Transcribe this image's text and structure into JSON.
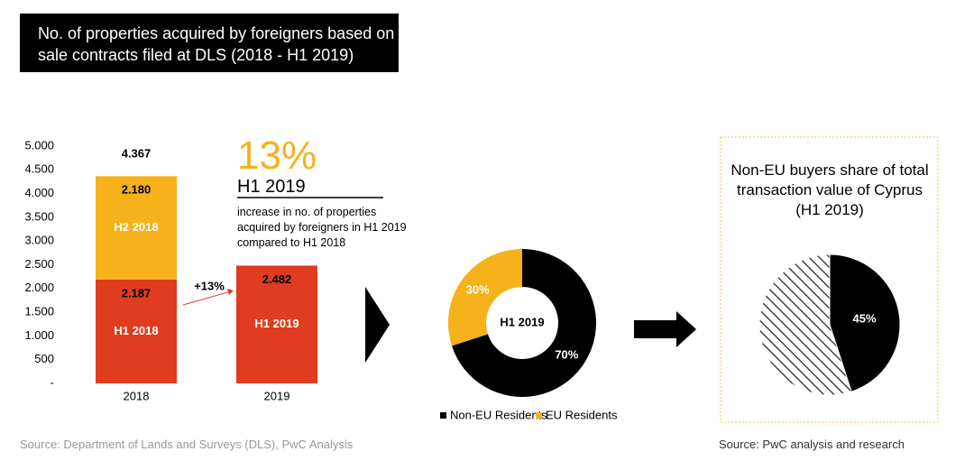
{
  "header": {
    "title": "No. of properties acquired by foreigners based on sale contracts filed at DLS (2018 - H1 2019)"
  },
  "chart_data": [
    {
      "type": "bar",
      "categories": [
        "2018",
        "2019"
      ],
      "series": [
        {
          "color": "#e03c1f",
          "values": [
            2187,
            2482
          ],
          "value_labels": [
            "2.187",
            "2.482"
          ],
          "labels": [
            "H1 2018",
            "H1 2019"
          ]
        },
        {
          "color": "#f5b21a",
          "values": [
            2180,
            null
          ],
          "value_labels": [
            "2.180",
            null
          ],
          "labels": [
            "H2 2018",
            null
          ]
        }
      ],
      "totals": [
        4367,
        null
      ],
      "total_labels": [
        "4.367",
        null
      ],
      "ylim": [
        0,
        5000
      ],
      "yticks": [
        {
          "value": 0,
          "label": "-"
        },
        500,
        {
          "value": 1000,
          "label": "1.000"
        },
        {
          "value": 1500,
          "label": "1.500"
        },
        {
          "value": 2000,
          "label": "2.000"
        },
        {
          "value": 2500,
          "label": "2.500"
        },
        {
          "value": 3000,
          "label": "3.000"
        },
        {
          "value": 3500,
          "label": "3.500"
        },
        {
          "value": 4000,
          "label": "4.000"
        },
        {
          "value": 4500,
          "label": "4.500"
        },
        {
          "value": 5000,
          "label": "5.000"
        }
      ],
      "annotations": [
        "+13%"
      ],
      "callout": {
        "value": 13,
        "value_label": "13%",
        "period": "H1 2019",
        "text": "increase in no. of properties acquired by foreigners in H1 2019 compared to H1 2018"
      }
    },
    {
      "type": "donut",
      "center_label": "H1 2019",
      "series": [
        {
          "name": "Non-EU Residents",
          "color": "#000000",
          "values": [
            70
          ],
          "value_labels": [
            "70%"
          ]
        },
        {
          "name": "EU Residents",
          "color": "#f5b21a",
          "values": [
            30
          ],
          "value_labels": [
            "30%"
          ]
        }
      ]
    },
    {
      "type": "pie",
      "title": "Non-EU buyers share of total transaction value of Cyprus (H1 2019)",
      "values": [
        45,
        55
      ],
      "value_labels": [
        "45%",
        null
      ],
      "colors": [
        "#000000",
        "hatch"
      ]
    }
  ],
  "sources": [
    "Source: Department of Lands and Surveys (DLS), PwC Analysis",
    "Source: PwC analysis and research"
  ]
}
